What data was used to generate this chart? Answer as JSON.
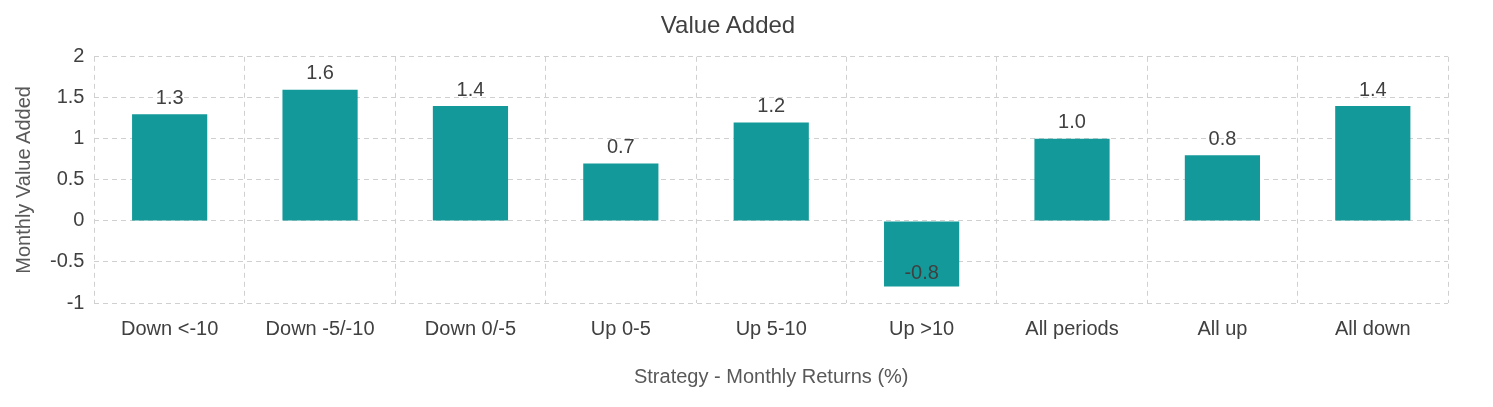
{
  "chart_data": {
    "type": "bar",
    "title": "Value Added",
    "xlabel": "Strategy - Monthly Returns (%)",
    "ylabel": "Monthly Value Added",
    "categories": [
      "Down <-10",
      "Down -5/-10",
      "Down 0/-5",
      "Up 0-5",
      "Up 5-10",
      "Up >10",
      "All periods",
      "All up",
      "All down"
    ],
    "values": [
      1.3,
      1.6,
      1.4,
      0.7,
      1.2,
      -0.8,
      1.0,
      0.8,
      1.4
    ],
    "value_labels": [
      "1.3",
      "1.6",
      "1.4",
      "0.7",
      "1.2",
      "-0.8",
      "1.0",
      "0.8",
      "1.4"
    ],
    "color": "#14999a",
    "ylim": [
      -1,
      2
    ],
    "yticks": [
      -1,
      -0.5,
      0,
      0.5,
      1,
      1.5,
      2
    ],
    "grid": true,
    "legend": false
  }
}
